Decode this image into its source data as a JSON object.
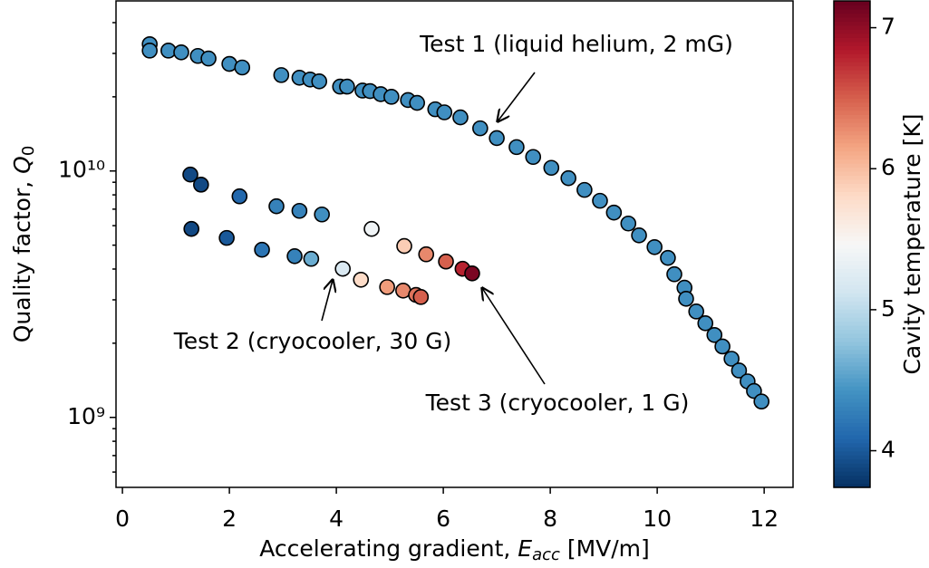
{
  "chart_data": {
    "type": "scatter",
    "xlabel": {
      "text": "Accelerating gradient, ",
      "symbol": "E",
      "subscript": "acc",
      "suffix": " [MV/m]"
    },
    "ylabel": {
      "text": "Quality factor, ",
      "symbol": "Q",
      "subscript": "0"
    },
    "xlim": [
      -0.12,
      12.54
    ],
    "xticks": [
      0,
      2,
      4,
      6,
      8,
      10,
      12
    ],
    "ylim": [
      520000000,
      49000000000
    ],
    "y_scale": "log",
    "yticks": [
      {
        "value": 1000000000,
        "label": "10⁹"
      },
      {
        "value": 10000000000,
        "label": "10¹⁰"
      }
    ],
    "yminorticks": [
      600000000,
      700000000,
      800000000,
      900000000,
      2000000000,
      3000000000,
      4000000000,
      5000000000,
      6000000000,
      7000000000,
      8000000000,
      9000000000,
      20000000000,
      30000000000,
      40000000000
    ],
    "colormap": "RdBu_r",
    "colorbar": {
      "label": "Cavity temperature [K]",
      "lim": [
        3.74,
        7.19
      ],
      "ticks": [
        4,
        5,
        6,
        7
      ]
    },
    "series": [
      {
        "name": "Test 1 (liquid helium, 2 mG)",
        "x": [
          0.51,
          0.51,
          0.86,
          1.1,
          1.41,
          1.61,
          2.0,
          2.24,
          2.97,
          3.31,
          3.51,
          3.68,
          4.07,
          4.2,
          4.49,
          4.63,
          4.83,
          5.03,
          5.34,
          5.51,
          5.85,
          6.02,
          6.32,
          6.69,
          7.0,
          7.37,
          7.68,
          8.02,
          8.34,
          8.64,
          8.93,
          9.19,
          9.46,
          9.66,
          9.95,
          10.2,
          10.32,
          10.51,
          10.54,
          10.73,
          10.9,
          11.07,
          11.22,
          11.39,
          11.53,
          11.69,
          11.81,
          11.95
        ],
        "values": [
          32700000000,
          30800000000,
          30800000000,
          30300000000,
          29300000000,
          28600000000,
          27200000000,
          26300000000,
          24500000000,
          23900000000,
          23500000000,
          23100000000,
          22000000000,
          22000000000,
          21200000000,
          21100000000,
          20500000000,
          20000000000,
          19400000000,
          18900000000,
          17800000000,
          17300000000,
          16500000000,
          14900000000,
          13600000000,
          12500000000,
          11400000000,
          10300000000,
          9350000000,
          8380000000,
          7570000000,
          6780000000,
          6120000000,
          5480000000,
          4910000000,
          4440000000,
          3810000000,
          3360000000,
          3030000000,
          2690000000,
          2410000000,
          2160000000,
          1940000000,
          1730000000,
          1550000000,
          1400000000,
          1280000000,
          1160000000
        ],
        "temperatures": [
          4.4,
          4.4,
          4.4,
          4.4,
          4.4,
          4.4,
          4.4,
          4.4,
          4.4,
          4.4,
          4.4,
          4.4,
          4.4,
          4.4,
          4.4,
          4.4,
          4.4,
          4.4,
          4.4,
          4.4,
          4.4,
          4.4,
          4.4,
          4.4,
          4.4,
          4.4,
          4.4,
          4.4,
          4.4,
          4.4,
          4.4,
          4.4,
          4.4,
          4.4,
          4.4,
          4.4,
          4.4,
          4.4,
          4.4,
          4.4,
          4.4,
          4.4,
          4.4,
          4.4,
          4.4,
          4.4,
          4.4,
          4.4
        ]
      },
      {
        "name": "Test 2 (cryocooler, 30 G)",
        "x": [
          1.29,
          1.95,
          2.61,
          3.22,
          3.53,
          4.12,
          4.46,
          4.95,
          5.25,
          5.49,
          5.58
        ],
        "values": [
          5820000000,
          5350000000,
          4790000000,
          4510000000,
          4400000000,
          4010000000,
          3620000000,
          3380000000,
          3270000000,
          3140000000,
          3080000000
        ],
        "temperatures": [
          3.9,
          4.0,
          4.2,
          4.3,
          4.6,
          5.2,
          5.8,
          6.2,
          6.3,
          6.4,
          6.5
        ]
      },
      {
        "name": "Test 3 (cryocooler, 1 G)",
        "x": [
          1.27,
          1.47,
          2.19,
          2.88,
          3.31,
          3.73,
          4.66,
          5.27,
          5.68,
          6.05,
          6.36,
          6.54
        ],
        "values": [
          9670000000,
          8800000000,
          7890000000,
          7190000000,
          6890000000,
          6660000000,
          5820000000,
          4960000000,
          4590000000,
          4290000000,
          4010000000,
          3840000000
        ],
        "temperatures": [
          3.9,
          3.9,
          4.1,
          4.3,
          4.3,
          4.4,
          5.4,
          5.9,
          6.3,
          6.5,
          6.8,
          7.1
        ]
      }
    ]
  }
}
